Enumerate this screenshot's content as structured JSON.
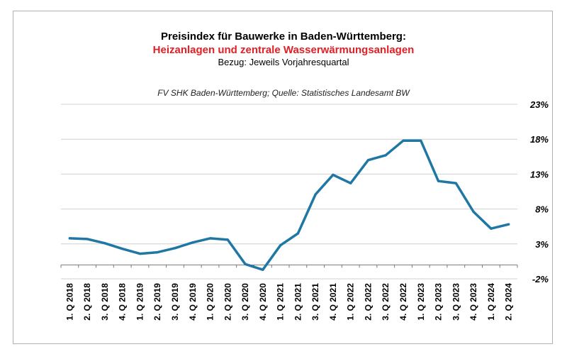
{
  "title": {
    "line1": "Preisindex für Bauwerke in Baden-Württemberg:",
    "line2": "Heizanlagen und zentrale Wasserwärmungsanlagen",
    "line3": "Bezug: Jeweils Vorjahresquartal"
  },
  "source": "FV SHK Baden-Württemberg; Quelle: Statistisches Landesamt BW",
  "colors": {
    "line": "#1f77a4",
    "title_accent": "#e31e24",
    "grid": "#d0d0d0"
  },
  "chart_data": {
    "type": "line",
    "categories": [
      "1. Q 2018",
      "2. Q 2018",
      "3. Q 2018",
      "4. Q 2018",
      "1. Q 2019",
      "2. Q 2019",
      "3. Q 2019",
      "4. Q 2019",
      "1. Q 2020",
      "2. Q 2020",
      "3. Q 2020",
      "4. Q 2020",
      "1. Q 2021",
      "2. Q 2021",
      "3. Q 2021",
      "4. Q 2021",
      "1. Q 2022",
      "2. Q 2022",
      "3. Q 2022",
      "4. Q 2022",
      "1. Q 2023",
      "2. Q 2023",
      "3. Q 2023",
      "4. Q 2023",
      "1. Q 2024",
      "2. Q 2024"
    ],
    "series": [
      {
        "values": [
          3.8,
          3.7,
          3.1,
          2.3,
          1.6,
          1.8,
          2.4,
          3.2,
          3.8,
          3.6,
          0.1,
          -0.7,
          2.8,
          4.5,
          10.1,
          12.9,
          11.7,
          15.0,
          15.7,
          17.8,
          17.8,
          12.0,
          11.7,
          7.6,
          5.2,
          5.8
        ]
      }
    ],
    "ytick_labels": [
      "23%",
      "18%",
      "13%",
      "8%",
      "3%",
      "-2%"
    ],
    "yticks": [
      23,
      18,
      13,
      8,
      3,
      -2
    ],
    "ylim": [
      -2,
      23
    ],
    "y_axis_side": "right",
    "grid": true,
    "legend": false
  }
}
